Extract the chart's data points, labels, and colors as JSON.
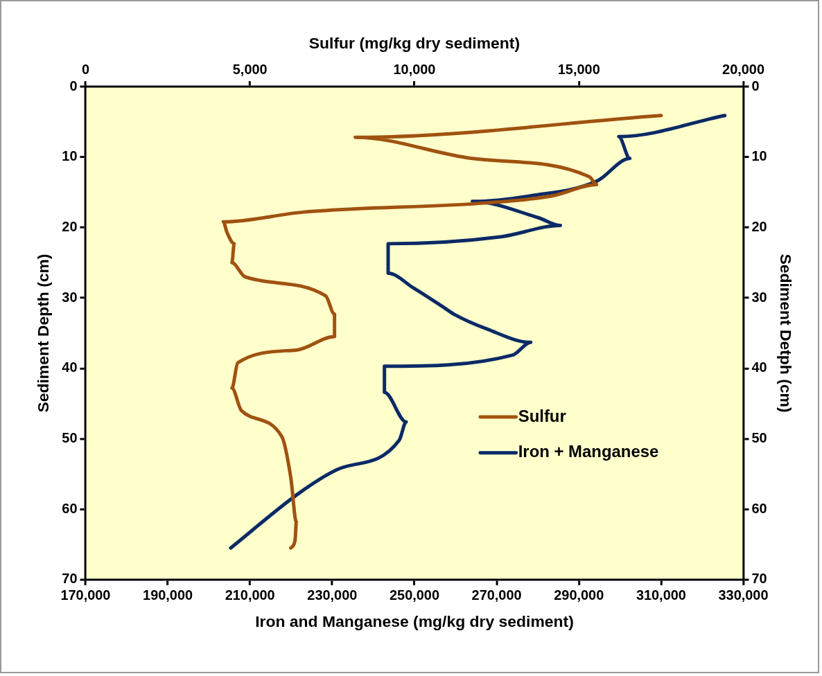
{
  "chart_data": {
    "type": "line",
    "xlabel": "Iron and Manganese (mg/kg dry sediment)",
    "x2label": "Sulfur (mg/kg dry sediment)",
    "ylabel": "Sediment Depth (cm)",
    "y2label": "Sediment Detph (cm)",
    "xlim": [
      170000,
      330000
    ],
    "xticks": [
      {
        "value": 170000,
        "label": "170,000"
      },
      {
        "value": 190000,
        "label": "190,000"
      },
      {
        "value": 210000,
        "label": "210,000"
      },
      {
        "value": 230000,
        "label": "230,000"
      },
      {
        "value": 250000,
        "label": "250,000"
      },
      {
        "value": 270000,
        "label": "270,000"
      },
      {
        "value": 290000,
        "label": "290,000"
      },
      {
        "value": 310000,
        "label": "310,000"
      },
      {
        "value": 330000,
        "label": "330,000"
      }
    ],
    "x2lim": [
      0,
      20000
    ],
    "x2ticks": [
      0,
      {
        "value": 5000,
        "label": "5,000"
      },
      {
        "value": 10000,
        "label": "10,000"
      },
      {
        "value": 15000,
        "label": "15,000"
      },
      {
        "value": 20000,
        "label": "20,000"
      }
    ],
    "ylim": [
      70,
      0
    ],
    "yticks": [
      0,
      10,
      20,
      30,
      40,
      50,
      60,
      70
    ],
    "y2lim": [
      70,
      0
    ],
    "y2ticks": [
      0,
      10,
      20,
      30,
      40,
      50,
      60,
      70
    ],
    "grid": false,
    "legend": "bottom right",
    "marker": "none",
    "line_style": "solid",
    "series": [
      {
        "name": "Sulfur",
        "color": "#a0520f",
        "axis": "x2",
        "x": [
          17500,
          8200,
          11760,
          15320,
          15540,
          14200,
          12200,
          6640,
          4190,
          4300,
          4520,
          4450,
          4850,
          7300,
          7570,
          7570,
          6410,
          4630,
          4450,
          4740,
          5970,
          6240,
          6410,
          6370,
          6240
        ],
        "values": [
          4.1,
          7.2,
          10.2,
          12.8,
          13.9,
          15.5,
          16.5,
          17.8,
          19.2,
          20.7,
          22.3,
          25,
          27,
          29.7,
          32.3,
          35.5,
          37.4,
          39.2,
          42.8,
          46,
          49.7,
          55.5,
          61.8,
          64.4,
          65.5
        ]
      },
      {
        "name": "Iron + Manganese",
        "color": "#0b2a66",
        "x": [
          325500,
          299700,
          302400,
          294400,
          278300,
          264100,
          280100,
          285500,
          271200,
          243600,
          243600,
          249800,
          257000,
          259600,
          267600,
          278300,
          273900,
          242700,
          242700,
          248000,
          246300,
          231100,
          222200,
          205300
        ],
        "values": [
          4.1,
          7.1,
          10.2,
          13.4,
          15.5,
          16.3,
          18.6,
          19.7,
          21.3,
          22.3,
          26.5,
          28.6,
          31.3,
          32.3,
          34.4,
          36.3,
          38.1,
          39.7,
          43.4,
          47.6,
          50.2,
          54.4,
          57.6,
          65.5
        ]
      }
    ]
  }
}
